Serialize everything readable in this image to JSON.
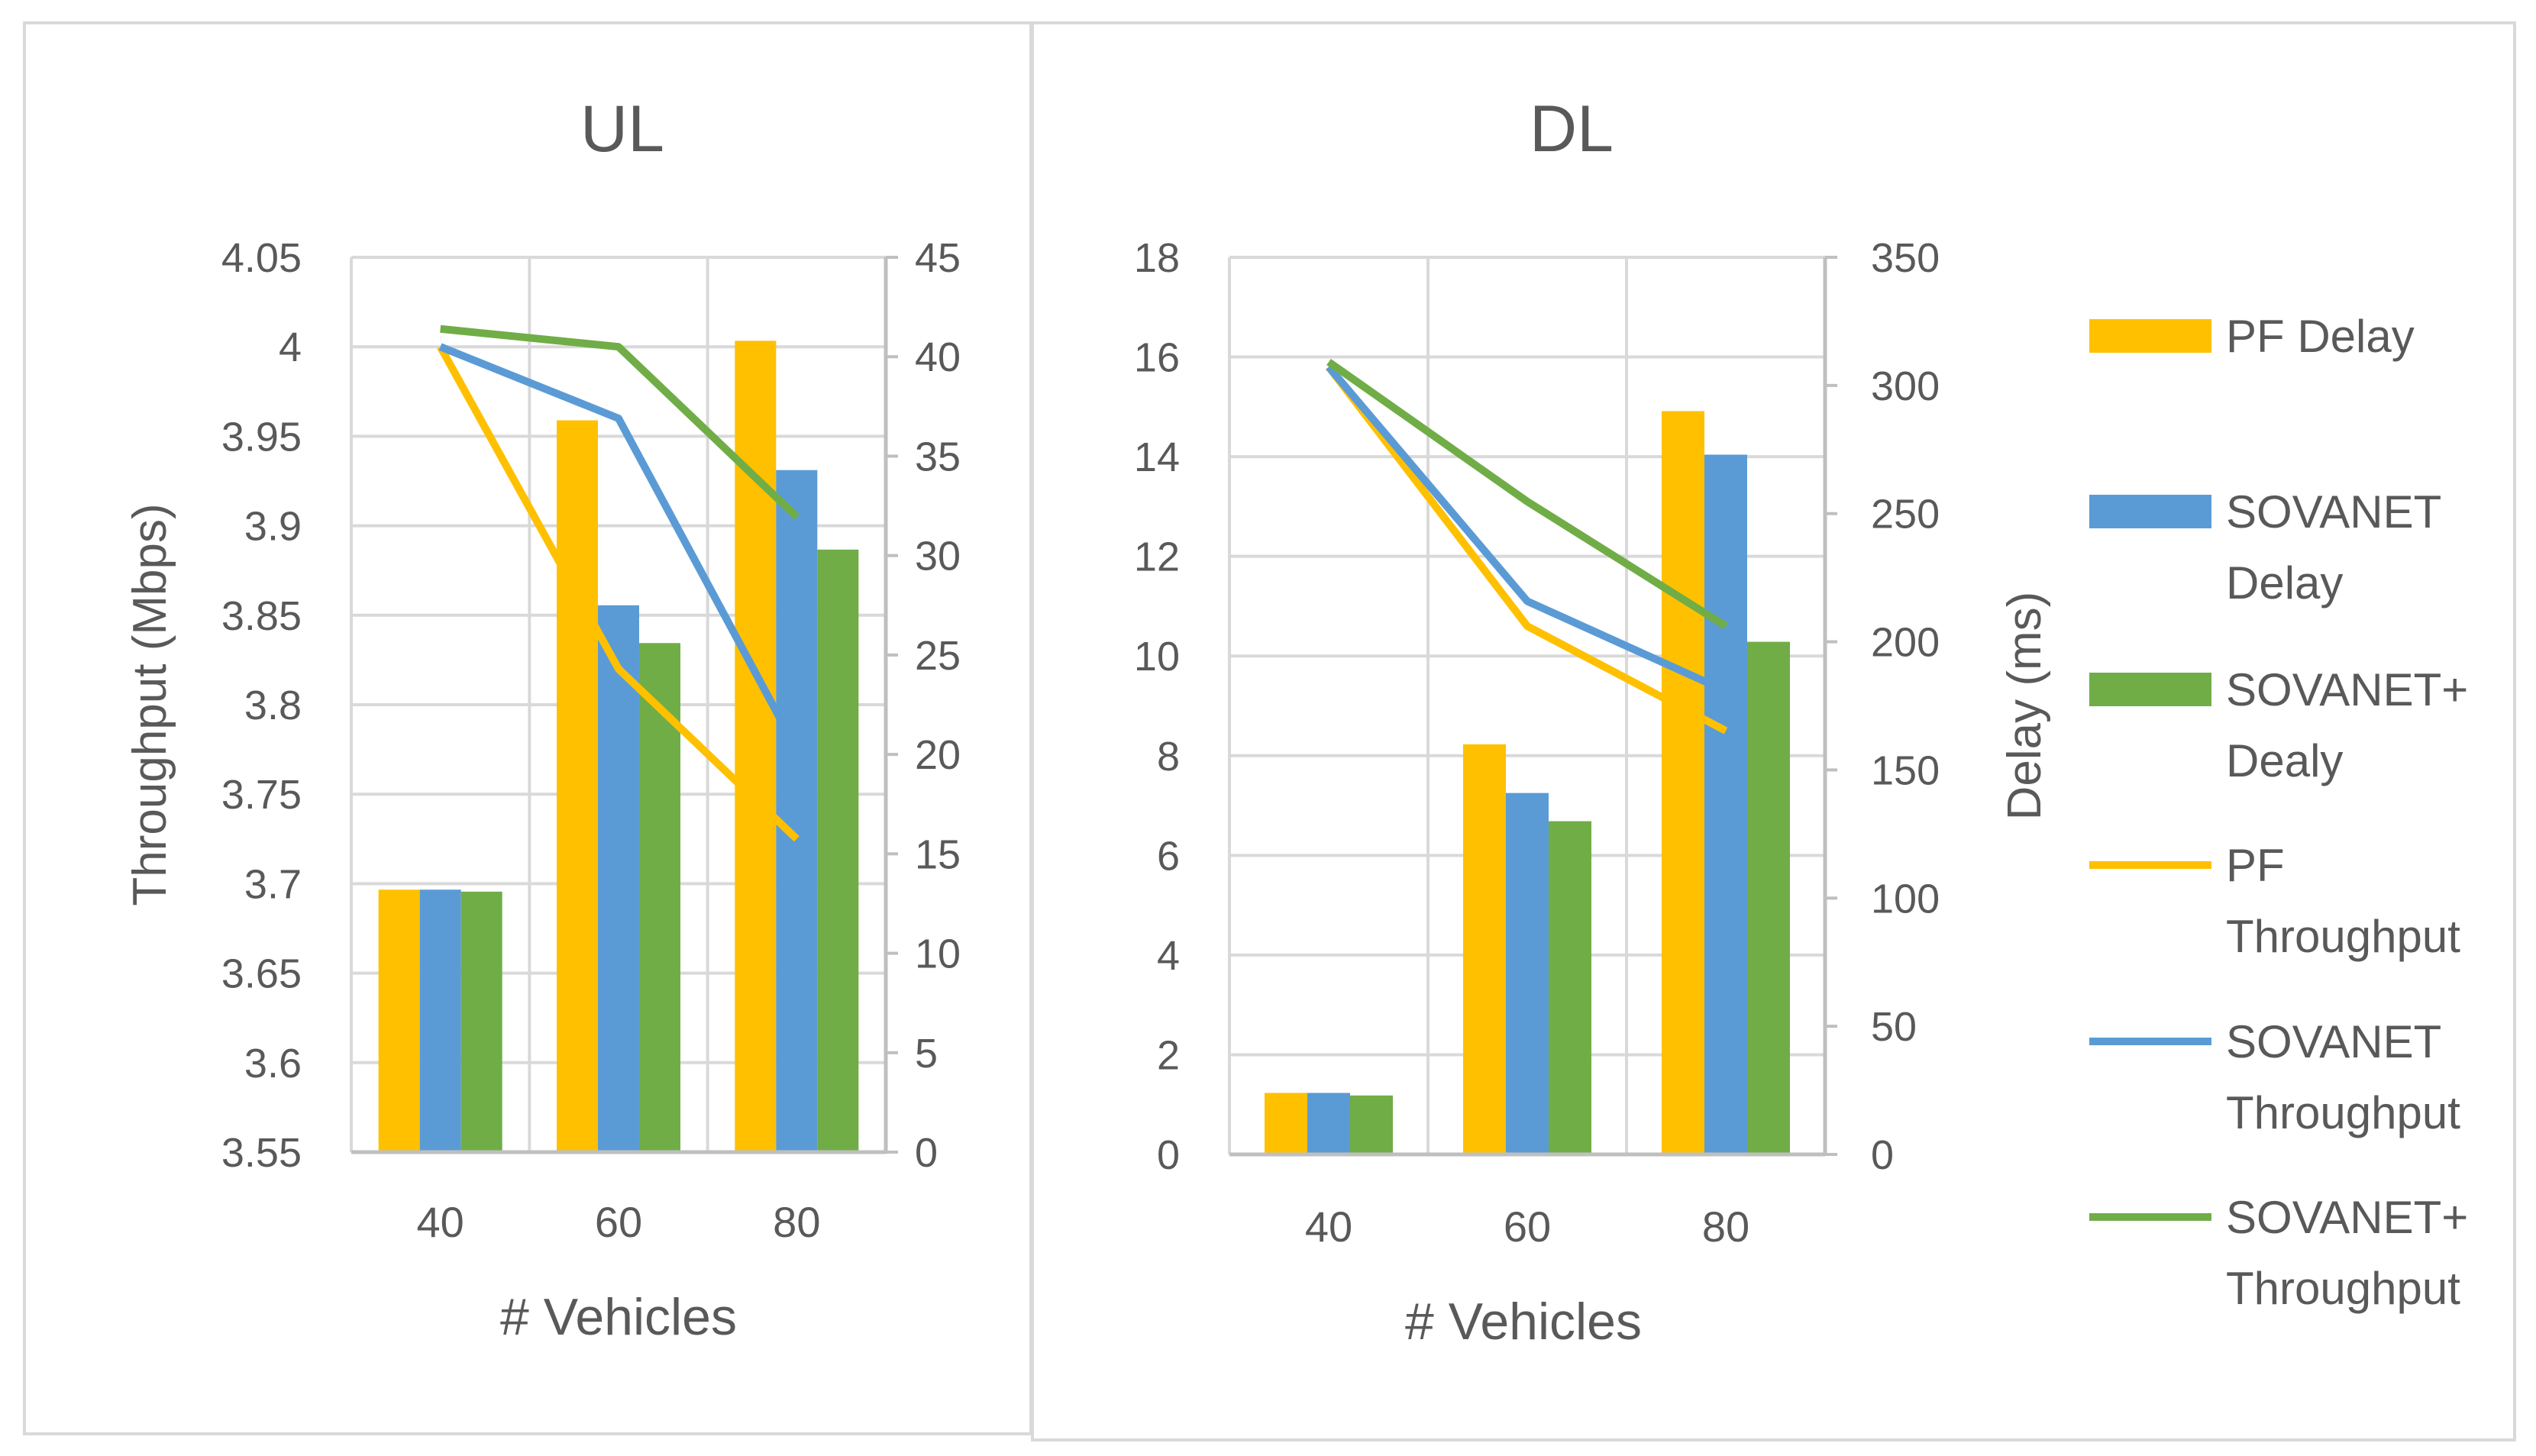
{
  "colors": {
    "pf": "#ffc000",
    "sovanet": "#5b9bd5",
    "sovanet_plus": "#70ad47",
    "grid": "#d9d9d9",
    "axis": "#bfbfbf",
    "text": "#595959"
  },
  "legend": [
    {
      "kind": "bar",
      "color_key": "pf",
      "lines": [
        "PF Delay"
      ]
    },
    {
      "kind": "bar",
      "color_key": "sovanet",
      "lines": [
        "SOVANET",
        "Delay"
      ]
    },
    {
      "kind": "bar",
      "color_key": "sovanet_plus",
      "lines": [
        "SOVANET+",
        "Dealy"
      ]
    },
    {
      "kind": "line",
      "color_key": "pf",
      "lines": [
        "PF",
        "Throughput"
      ]
    },
    {
      "kind": "line",
      "color_key": "sovanet",
      "lines": [
        "SOVANET",
        "Throughput"
      ]
    },
    {
      "kind": "line",
      "color_key": "sovanet_plus",
      "lines": [
        "SOVANET+",
        "Throughput"
      ]
    }
  ],
  "chart_data": [
    {
      "type": "bar+line",
      "title": "UL",
      "xlabel": "# Vehicles",
      "ylabel_left": "Throughput (Mbps)",
      "ylabel_right": "",
      "categories": [
        "40",
        "60",
        "80"
      ],
      "y_left": {
        "min": 3.55,
        "max": 4.05,
        "ticks": [
          "4.05",
          "4",
          "3.95",
          "3.9",
          "3.85",
          "3.8",
          "3.75",
          "3.7",
          "3.65",
          "3.6",
          "3.55"
        ]
      },
      "y_right": {
        "min": 0,
        "max": 45,
        "ticks": [
          "45",
          "40",
          "35",
          "30",
          "25",
          "20",
          "15",
          "10",
          "5",
          "0"
        ]
      },
      "bar_series": [
        {
          "name": "PF Delay",
          "color_key": "pf",
          "values": [
            13.2,
            36.8,
            40.8
          ]
        },
        {
          "name": "SOVANET Delay",
          "color_key": "sovanet",
          "values": [
            13.2,
            27.5,
            34.3
          ]
        },
        {
          "name": "SOVANET+ Dealy",
          "color_key": "sovanet_plus",
          "values": [
            13.1,
            25.6,
            30.3
          ]
        }
      ],
      "line_series": [
        {
          "name": "PF Throughput",
          "color_key": "pf",
          "values": [
            4.0,
            3.82,
            3.725
          ]
        },
        {
          "name": "SOVANET Throughput",
          "color_key": "sovanet",
          "values": [
            4.0,
            3.96,
            3.775
          ]
        },
        {
          "name": "SOVANET+ Throughput",
          "color_key": "sovanet_plus",
          "values": [
            4.01,
            4.0,
            3.905
          ]
        }
      ]
    },
    {
      "type": "bar+line",
      "title": "DL",
      "xlabel": "# Vehicles",
      "ylabel_left": "",
      "ylabel_right": "Delay (ms)",
      "categories": [
        "40",
        "60",
        "80"
      ],
      "y_left": {
        "min": 0,
        "max": 18,
        "ticks": [
          "18",
          "16",
          "14",
          "12",
          "10",
          "8",
          "6",
          "4",
          "2",
          "0"
        ]
      },
      "y_right": {
        "min": 0,
        "max": 350,
        "ticks": [
          "350",
          "300",
          "250",
          "200",
          "150",
          "100",
          "50",
          "0"
        ]
      },
      "bar_series": [
        {
          "name": "PF Delay",
          "color_key": "pf",
          "values": [
            24,
            160,
            290
          ]
        },
        {
          "name": "SOVANET Delay",
          "color_key": "sovanet",
          "values": [
            24,
            141,
            273
          ]
        },
        {
          "name": "SOVANET+ Dealy",
          "color_key": "sovanet_plus",
          "values": [
            23,
            130,
            200
          ]
        }
      ],
      "line_series": [
        {
          "name": "PF Throughput",
          "color_key": "pf",
          "values": [
            15.8,
            10.6,
            8.5
          ]
        },
        {
          "name": "SOVANET Throughput",
          "color_key": "sovanet",
          "values": [
            15.8,
            11.1,
            9.3
          ]
        },
        {
          "name": "SOVANET+ Throughput",
          "color_key": "sovanet_plus",
          "values": [
            15.9,
            13.1,
            10.6
          ]
        }
      ]
    }
  ]
}
